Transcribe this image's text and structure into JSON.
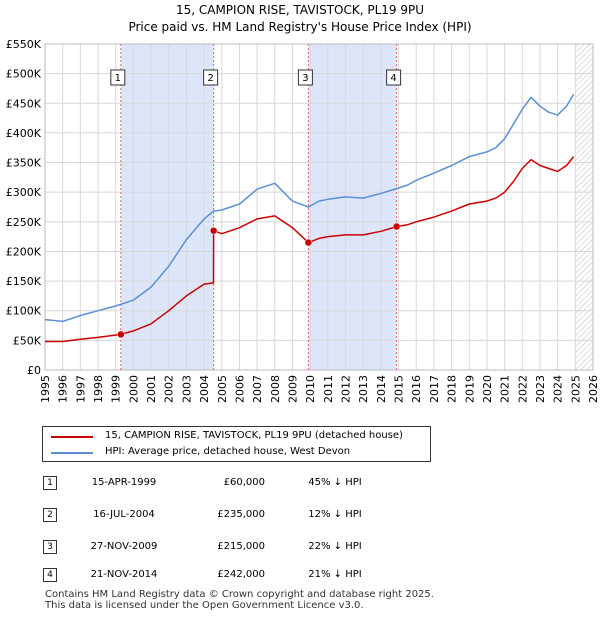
{
  "title": "15, CAMPION RISE, TAVISTOCK, PL19 9PU",
  "subtitle": "Price paid vs. HM Land Registry's House Price Index (HPI)",
  "colors": {
    "property": "#cc0000",
    "hpi": "#5b8fd6",
    "shade": "#dde6f8",
    "marker_line": "#e06666"
  },
  "chart_data": {
    "type": "line",
    "xlim": [
      1995,
      2026
    ],
    "ylim": [
      0,
      550000
    ],
    "x_ticks": [
      1995,
      1996,
      1997,
      1998,
      1999,
      2000,
      2001,
      2002,
      2003,
      2004,
      2005,
      2006,
      2007,
      2008,
      2009,
      2010,
      2011,
      2012,
      2013,
      2014,
      2015,
      2016,
      2017,
      2018,
      2019,
      2020,
      2021,
      2022,
      2023,
      2024,
      2025,
      2026
    ],
    "y_ticks": [
      {
        "value": 0,
        "label": "£0"
      },
      {
        "value": 50000,
        "label": "£50K"
      },
      {
        "value": 100000,
        "label": "£100K"
      },
      {
        "value": 150000,
        "label": "£150K"
      },
      {
        "value": 200000,
        "label": "£200K"
      },
      {
        "value": 250000,
        "label": "£250K"
      },
      {
        "value": 300000,
        "label": "£300K"
      },
      {
        "value": 350000,
        "label": "£350K"
      },
      {
        "value": 400000,
        "label": "£400K"
      },
      {
        "value": 450000,
        "label": "£450K"
      },
      {
        "value": 500000,
        "label": "£500K"
      },
      {
        "value": 550000,
        "label": "£550K"
      }
    ],
    "shaded_ranges": [
      [
        1999.29,
        2004.54
      ],
      [
        2009.9,
        2014.89
      ]
    ],
    "hatched_from": 2025.0,
    "series": [
      {
        "name": "15, CAMPION RISE, TAVISTOCK, PL19 9PU (detached house)",
        "color": "#cc0000",
        "x": [
          1995.0,
          1996.0,
          1997.0,
          1998.0,
          1999.29,
          2000.0,
          2001.0,
          2002.0,
          2003.0,
          2004.0,
          2004.53,
          2004.54,
          2005.0,
          2006.0,
          2007.0,
          2008.0,
          2009.0,
          2009.9,
          2010.5,
          2011.0,
          2012.0,
          2013.0,
          2014.0,
          2014.89,
          2015.5,
          2016.0,
          2017.0,
          2018.0,
          2019.0,
          2020.0,
          2020.5,
          2021.0,
          2021.5,
          2022.0,
          2022.5,
          2023.0,
          2023.5,
          2024.0,
          2024.5,
          2024.9
        ],
        "y": [
          48000,
          48000,
          52000,
          55000,
          60000,
          66000,
          78000,
          100000,
          125000,
          145000,
          147000,
          235000,
          230000,
          240000,
          255000,
          260000,
          240000,
          215000,
          222000,
          225000,
          228000,
          228000,
          234000,
          242000,
          245000,
          250000,
          258000,
          268000,
          280000,
          285000,
          290000,
          300000,
          318000,
          340000,
          355000,
          345000,
          340000,
          335000,
          345000,
          360000
        ]
      },
      {
        "name": "HPI: Average price, detached house, West Devon",
        "color": "#5b8fd6",
        "x": [
          1995.0,
          1996.0,
          1997.0,
          1998.0,
          1999.0,
          2000.0,
          2001.0,
          2002.0,
          2003.0,
          2004.0,
          2004.54,
          2005.0,
          2006.0,
          2007.0,
          2008.0,
          2009.0,
          2009.9,
          2010.5,
          2011.0,
          2012.0,
          2013.0,
          2014.0,
          2014.89,
          2015.5,
          2016.0,
          2017.0,
          2018.0,
          2019.0,
          2020.0,
          2020.5,
          2021.0,
          2021.5,
          2022.0,
          2022.5,
          2023.0,
          2023.5,
          2024.0,
          2024.5,
          2024.9
        ],
        "y": [
          85000,
          82000,
          92000,
          100000,
          108000,
          118000,
          140000,
          175000,
          220000,
          255000,
          268000,
          270000,
          280000,
          305000,
          315000,
          285000,
          275000,
          285000,
          288000,
          292000,
          290000,
          298000,
          306000,
          312000,
          320000,
          332000,
          345000,
          360000,
          368000,
          375000,
          390000,
          415000,
          440000,
          460000,
          445000,
          435000,
          430000,
          445000,
          465000
        ]
      }
    ],
    "sales": [
      {
        "num": "1",
        "x": 1999.29,
        "y": 60000
      },
      {
        "num": "2",
        "x": 2004.54,
        "y": 235000
      },
      {
        "num": "3",
        "x": 2009.9,
        "y": 215000
      },
      {
        "num": "4",
        "x": 2014.89,
        "y": 242000
      }
    ]
  },
  "legend": {
    "property_label": "15, CAMPION RISE, TAVISTOCK, PL19 9PU (detached house)",
    "hpi_label": "HPI: Average price, detached house, West Devon"
  },
  "transactions": [
    {
      "num": "1",
      "date": "15-APR-1999",
      "price": "£60,000",
      "hpi": "45% ↓ HPI"
    },
    {
      "num": "2",
      "date": "16-JUL-2004",
      "price": "£235,000",
      "hpi": "12% ↓ HPI"
    },
    {
      "num": "3",
      "date": "27-NOV-2009",
      "price": "£215,000",
      "hpi": "22% ↓ HPI"
    },
    {
      "num": "4",
      "date": "21-NOV-2014",
      "price": "£242,000",
      "hpi": "21% ↓ HPI"
    }
  ],
  "footer": {
    "line1": "Contains HM Land Registry data © Crown copyright and database right 2025.",
    "line2": "This data is licensed under the Open Government Licence v3.0."
  }
}
